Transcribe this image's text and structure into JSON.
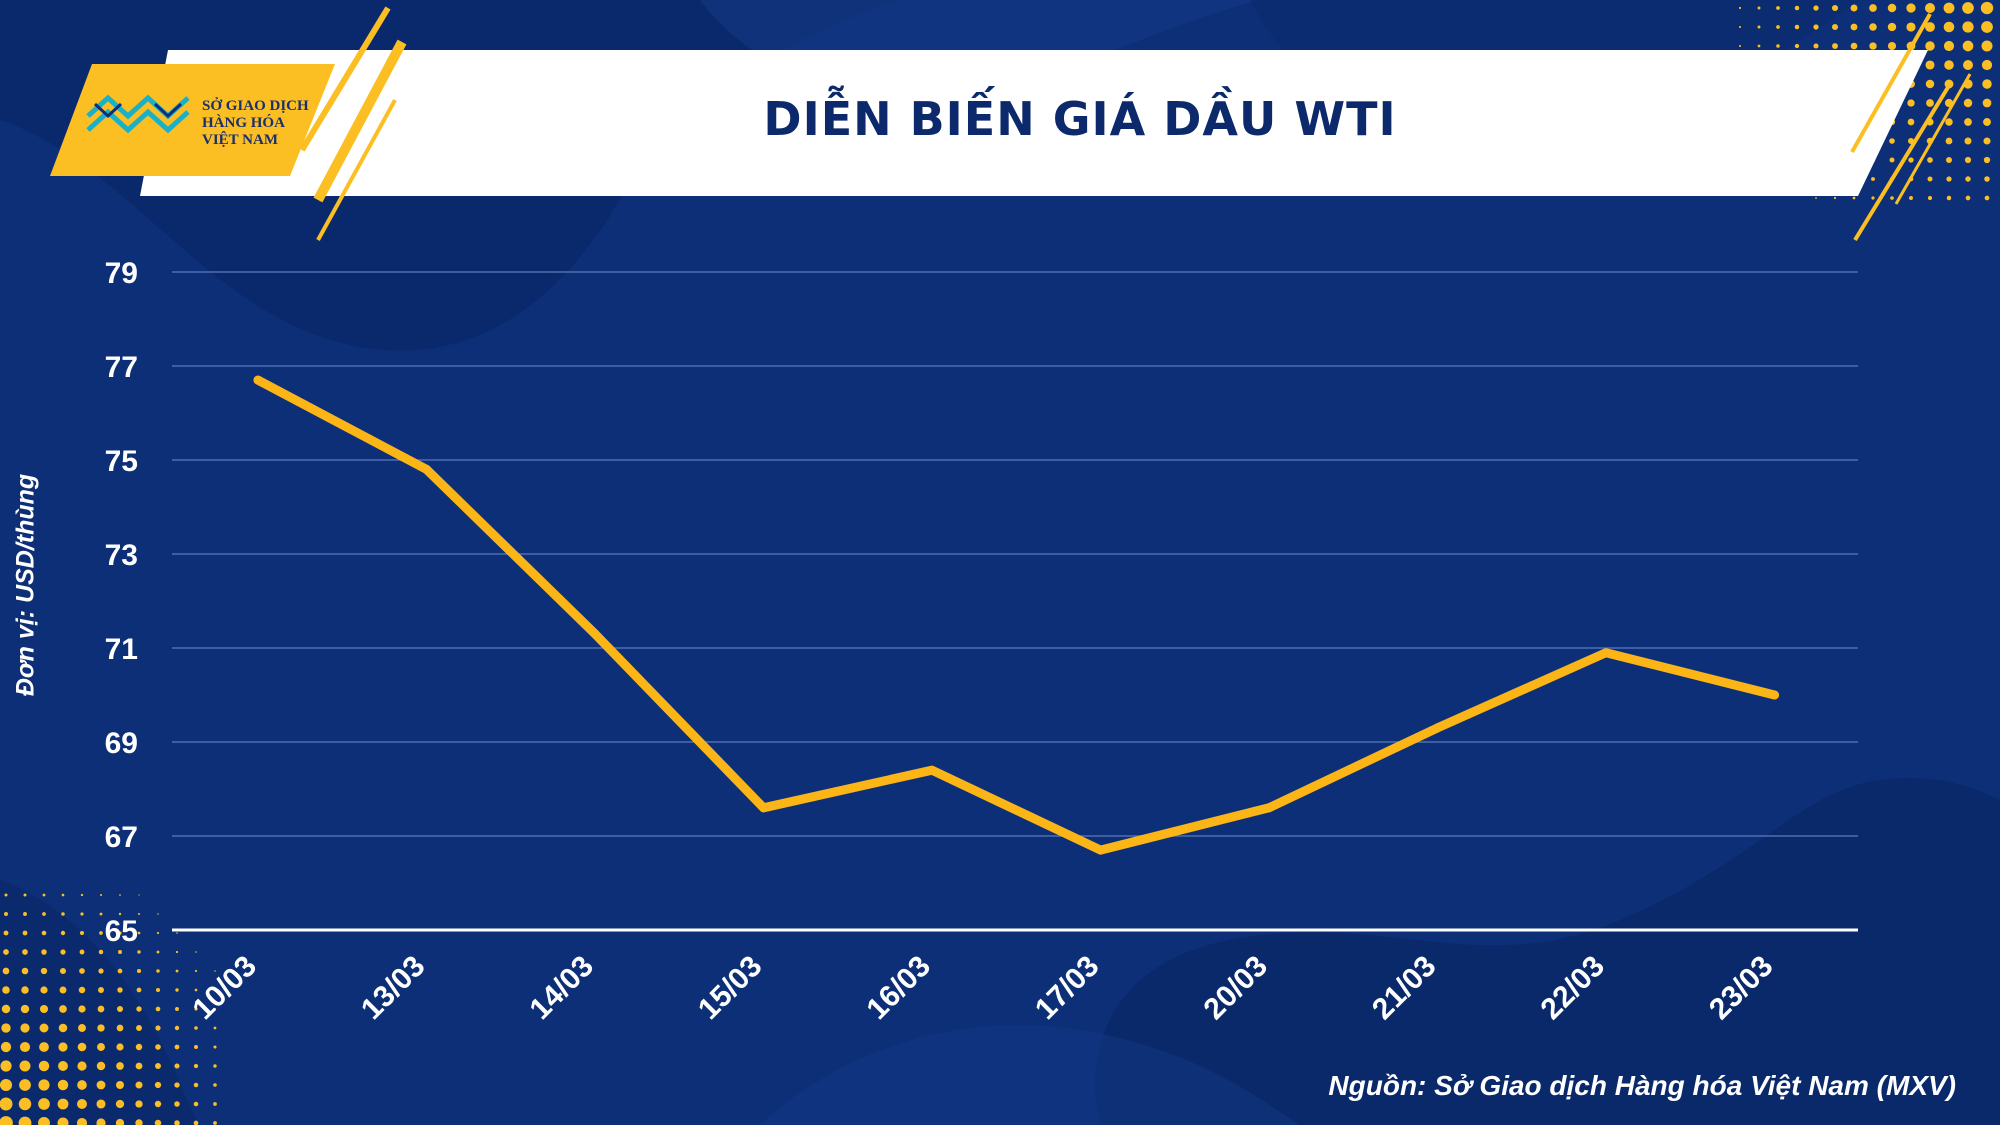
{
  "header": {
    "title": "DIỄN BIẾN GIÁ DẦU WTI",
    "logo_lines": [
      "SỞ GIAO DỊCH",
      "HÀNG HÓA",
      "VIỆT NAM"
    ]
  },
  "footer": {
    "source": "Nguồn: Sở Giao dịch Hàng hóa Việt Nam (MXV)"
  },
  "colors": {
    "background": "#0d2f78",
    "line": "#fbb516",
    "accent_yellow": "#fbbf24",
    "text": "#ffffff",
    "title_text": "#0c2a6b"
  },
  "chart_data": {
    "type": "line",
    "title": "DIỄN BIẾN GIÁ DẦU WTI",
    "xlabel": "",
    "ylabel": "Đơn vị: USD/thùng",
    "categories": [
      "10/03",
      "13/03",
      "14/03",
      "15/03",
      "16/03",
      "17/03",
      "20/03",
      "21/03",
      "22/03",
      "23/03"
    ],
    "series": [
      {
        "values": [
          76.7,
          74.8,
          71.3,
          67.6,
          68.4,
          66.7,
          67.6,
          69.3,
          70.9,
          70.0
        ]
      }
    ],
    "ylim": [
      65,
      79
    ],
    "yticks": [
      65,
      67,
      69,
      71,
      73,
      75,
      77,
      79
    ],
    "grid": true,
    "legend": "none"
  }
}
